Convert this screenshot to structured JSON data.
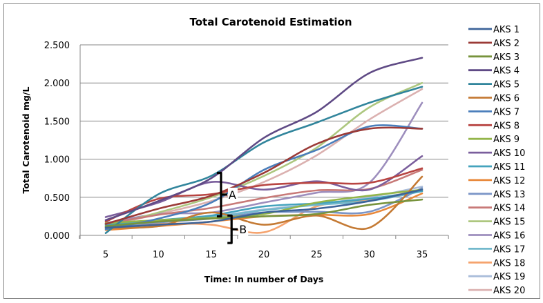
{
  "chart_data": {
    "type": "line",
    "title": "Total Carotenoid Estimation",
    "xlabel": "Time: In number of Days",
    "ylabel": "Total Carotenoid  mg/L",
    "x": [
      5,
      10,
      15,
      20,
      25,
      30,
      35
    ],
    "x_tick_labels": [
      "5",
      "10",
      "15",
      "20",
      "25",
      "30",
      "35"
    ],
    "ylim": [
      0,
      2.5
    ],
    "y_ticks": [
      0,
      0.5,
      1.0,
      1.5,
      2.0,
      2.5
    ],
    "y_tick_labels": [
      "0.000",
      "0.500",
      "1.000",
      "1.500",
      "2.000",
      "2.500"
    ],
    "grid": "horizontal",
    "legend_position": "right",
    "series": [
      {
        "name": "AKS 1",
        "color": "#3c6399",
        "values": [
          0.1,
          0.14,
          0.18,
          0.3,
          0.35,
          0.45,
          0.6
        ]
      },
      {
        "name": "AKS 2",
        "color": "#9b3a37",
        "values": [
          0.15,
          0.35,
          0.52,
          0.82,
          1.2,
          1.4,
          1.4
        ]
      },
      {
        "name": "AKS 3",
        "color": "#77933c",
        "values": [
          0.12,
          0.18,
          0.22,
          0.25,
          0.28,
          0.4,
          0.47
        ]
      },
      {
        "name": "AKS 4",
        "color": "#5f4a85",
        "values": [
          0.2,
          0.45,
          0.75,
          1.28,
          1.62,
          2.13,
          2.33
        ]
      },
      {
        "name": "AKS 5",
        "color": "#31859c",
        "values": [
          0.03,
          0.54,
          0.78,
          1.22,
          1.48,
          1.74,
          1.95
        ]
      },
      {
        "name": "AKS 6",
        "color": "#c47a34",
        "values": [
          0.1,
          0.12,
          0.3,
          0.14,
          0.26,
          0.1,
          0.77
        ]
      },
      {
        "name": "AKS 7",
        "color": "#4a7ebb",
        "values": [
          0.08,
          0.22,
          0.43,
          0.86,
          1.12,
          1.43,
          1.4
        ]
      },
      {
        "name": "AKS 8",
        "color": "#b84542",
        "values": [
          0.18,
          0.48,
          0.54,
          0.66,
          0.69,
          0.69,
          0.88
        ]
      },
      {
        "name": "AKS 9",
        "color": "#93b54a",
        "values": [
          0.16,
          0.2,
          0.23,
          0.28,
          0.43,
          0.52,
          0.6
        ]
      },
      {
        "name": "AKS 10",
        "color": "#7a5e9c",
        "values": [
          0.24,
          0.43,
          0.7,
          0.6,
          0.71,
          0.6,
          1.04
        ]
      },
      {
        "name": "AKS 11",
        "color": "#44a3bd",
        "values": [
          0.14,
          0.2,
          0.26,
          0.38,
          0.42,
          0.48,
          0.58
        ]
      },
      {
        "name": "AKS 12",
        "color": "#e8883a",
        "values": [
          0.07,
          0.12,
          0.18,
          0.25,
          0.27,
          0.28,
          0.55
        ]
      },
      {
        "name": "AKS 13",
        "color": "#7b95c7",
        "values": [
          0.11,
          0.17,
          0.22,
          0.3,
          0.31,
          0.31,
          0.62
        ]
      },
      {
        "name": "AKS 14",
        "color": "#c87a78",
        "values": [
          0.15,
          0.27,
          0.36,
          0.49,
          0.59,
          0.61,
          0.86
        ]
      },
      {
        "name": "AKS 15",
        "color": "#adc77f",
        "values": [
          0.12,
          0.3,
          0.5,
          0.78,
          1.15,
          1.68,
          2.0
        ]
      },
      {
        "name": "AKS 16",
        "color": "#9d8ebd",
        "values": [
          0.16,
          0.28,
          0.3,
          0.43,
          0.56,
          0.69,
          1.74
        ]
      },
      {
        "name": "AKS 17",
        "color": "#72b8cc",
        "values": [
          0.13,
          0.18,
          0.24,
          0.33,
          0.4,
          0.45,
          0.58
        ]
      },
      {
        "name": "AKS 18",
        "color": "#f5a36e",
        "values": [
          0.09,
          0.15,
          0.14,
          0.04,
          0.38,
          0.47,
          0.59
        ]
      },
      {
        "name": "AKS 19",
        "color": "#a9bcd9",
        "values": [
          0.14,
          0.19,
          0.24,
          0.34,
          0.41,
          0.5,
          0.64
        ]
      },
      {
        "name": "AKS 20",
        "color": "#dbb1b0",
        "values": [
          0.12,
          0.28,
          0.45,
          0.7,
          1.05,
          1.52,
          1.92
        ]
      }
    ],
    "annotations": [
      {
        "label": "A",
        "type": "brace",
        "x": 16,
        "y_range": [
          0.25,
          0.82
        ]
      },
      {
        "label": "B",
        "type": "brace",
        "x": 17,
        "y_range": [
          -0.1,
          0.26
        ]
      }
    ]
  }
}
